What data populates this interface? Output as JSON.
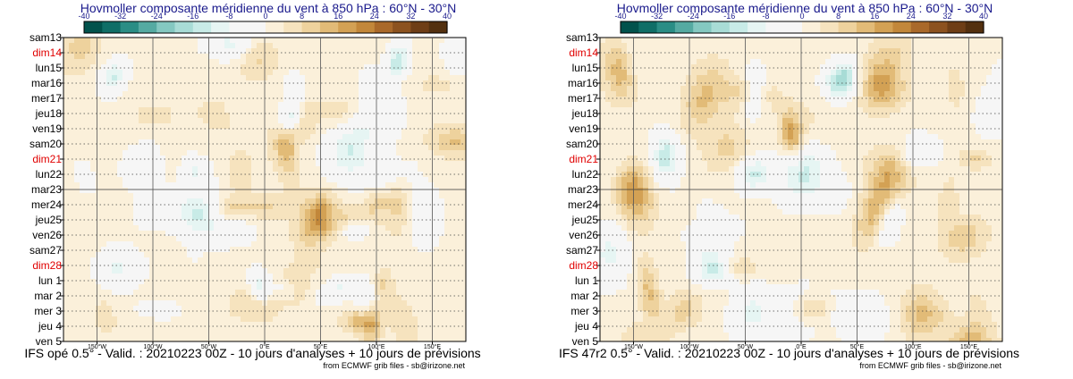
{
  "chart_data": [
    {
      "type": "heatmap",
      "title": "Hovmoller composante méridienne du vent à 850 hPa : 60°N - 30°N",
      "footer": "IFS opé 0.5° - Valid. : 20210223 00Z - 10 jours d'analyses + 10 jours de prévisions",
      "credit": "from ECMWF grib files - sb@irizone.net",
      "colorbar_ticks": [
        "-40",
        "-32",
        "-24",
        "-16",
        "-8",
        "0",
        "8",
        "16",
        "24",
        "32",
        "40"
      ],
      "colorbar_range": [
        -40,
        40
      ],
      "x_ticks": [
        "150°W",
        "100°W",
        "50°W",
        "0°E",
        "50°E",
        "100°E",
        "150°E"
      ],
      "x_range_deg": [
        -180,
        180
      ],
      "y_labels": [
        {
          "label": "sam13",
          "weekend": false
        },
        {
          "label": "dim14",
          "weekend": true
        },
        {
          "label": "lun15",
          "weekend": false
        },
        {
          "label": "mar16",
          "weekend": false
        },
        {
          "label": "mer17",
          "weekend": false
        },
        {
          "label": "jeu18",
          "weekend": false
        },
        {
          "label": "ven19",
          "weekend": false
        },
        {
          "label": "sam20",
          "weekend": false
        },
        {
          "label": "dim21",
          "weekend": true
        },
        {
          "label": "lun22",
          "weekend": false
        },
        {
          "label": "mar23",
          "weekend": false
        },
        {
          "label": "mer24",
          "weekend": false
        },
        {
          "label": "jeu25",
          "weekend": false
        },
        {
          "label": "ven26",
          "weekend": false
        },
        {
          "label": "sam27",
          "weekend": false
        },
        {
          "label": "dim28",
          "weekend": true
        },
        {
          "label": "lun 1",
          "weekend": false
        },
        {
          "label": "mar 2",
          "weekend": false
        },
        {
          "label": "mer 3",
          "weekend": false
        },
        {
          "label": "jeu 4",
          "weekend": false
        },
        {
          "label": "ven 5",
          "weekend": false
        }
      ],
      "analysis_forecast_split_label": "mar23",
      "seed": 1
    },
    {
      "type": "heatmap",
      "title": "Hovmoller composante méridienne du vent à 850 hPa : 60°N - 30°N",
      "footer": "IFS 47r2 0.5° - Valid. : 20210223 00Z - 10 jours d'analyses + 10 jours de prévisions",
      "credit": "from ECMWF grib files - sb@irizone.net",
      "colorbar_ticks": [
        "-40",
        "-32",
        "-24",
        "-16",
        "-8",
        "0",
        "8",
        "16",
        "24",
        "32",
        "40"
      ],
      "colorbar_range": [
        -40,
        40
      ],
      "x_ticks": [
        "150°W",
        "100°W",
        "50°W",
        "0°E",
        "50°E",
        "100°E",
        "150°E"
      ],
      "x_range_deg": [
        -180,
        180
      ],
      "y_labels": [
        {
          "label": "sam13",
          "weekend": false
        },
        {
          "label": "dim14",
          "weekend": true
        },
        {
          "label": "lun15",
          "weekend": false
        },
        {
          "label": "mar16",
          "weekend": false
        },
        {
          "label": "mer17",
          "weekend": false
        },
        {
          "label": "jeu18",
          "weekend": false
        },
        {
          "label": "ven19",
          "weekend": false
        },
        {
          "label": "sam20",
          "weekend": false
        },
        {
          "label": "dim21",
          "weekend": true
        },
        {
          "label": "lun22",
          "weekend": false
        },
        {
          "label": "mar23",
          "weekend": false
        },
        {
          "label": "mer24",
          "weekend": false
        },
        {
          "label": "jeu25",
          "weekend": false
        },
        {
          "label": "ven26",
          "weekend": false
        },
        {
          "label": "sam27",
          "weekend": false
        },
        {
          "label": "dim28",
          "weekend": true
        },
        {
          "label": "lun 1",
          "weekend": false
        },
        {
          "label": "mar 2",
          "weekend": false
        },
        {
          "label": "mer 3",
          "weekend": false
        },
        {
          "label": "jeu 4",
          "weekend": false
        },
        {
          "label": "ven 5",
          "weekend": false
        }
      ],
      "analysis_forecast_split_label": "mar23",
      "seed": 2
    }
  ],
  "colors": {
    "weekend_label": "#e00000",
    "weekday_label": "#000000",
    "title": "#1a1a8c",
    "palette": [
      "#01524c",
      "#0f6e67",
      "#2a8d85",
      "#55aaa2",
      "#84c8c1",
      "#a8dcd6",
      "#c8ebe7",
      "#e6f5f3",
      "#f6f6f6",
      "#f6f6f6",
      "#fbf0da",
      "#f6e3be",
      "#eed29d",
      "#e2bb77",
      "#d3a154",
      "#c2873a",
      "#a9692a",
      "#8c521f",
      "#6e3e16",
      "#53300f"
    ]
  }
}
